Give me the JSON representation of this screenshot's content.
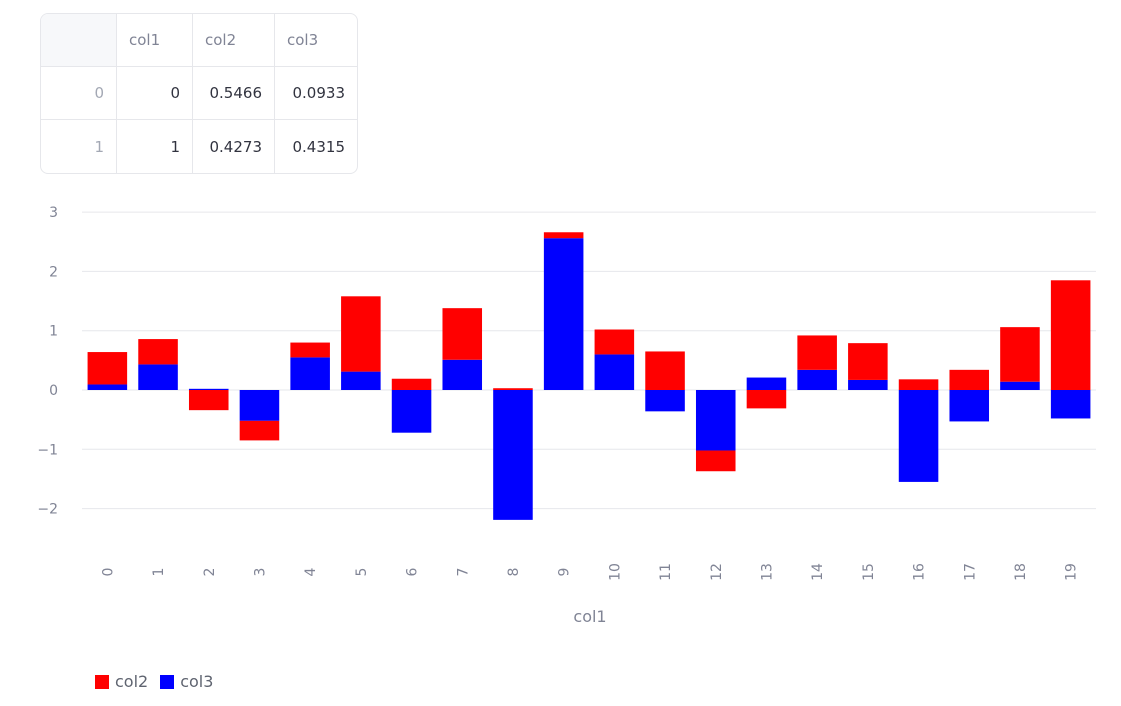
{
  "table": {
    "columns": [
      "",
      "col1",
      "col2",
      "col3"
    ],
    "rows": [
      {
        "index": "0",
        "col1": "0",
        "col2": "0.5466",
        "col3": "0.0933"
      },
      {
        "index": "1",
        "col1": "1",
        "col2": "0.4273",
        "col3": "0.4315"
      }
    ]
  },
  "chart_data": {
    "type": "bar",
    "stacked": true,
    "xlabel": "col1",
    "ylabel": "",
    "ylim": [
      -2.3,
      3.1
    ],
    "yticks": [
      -2,
      -1,
      0,
      1,
      2,
      3
    ],
    "ytick_labels": [
      "−2",
      "−1",
      "0",
      "1",
      "2",
      "3"
    ],
    "categories": [
      "0",
      "1",
      "2",
      "3",
      "4",
      "5",
      "6",
      "7",
      "8",
      "9",
      "10",
      "11",
      "12",
      "13",
      "14",
      "15",
      "16",
      "17",
      "18",
      "19"
    ],
    "series": [
      {
        "name": "col2",
        "color": "#ff0000",
        "values": [
          0.5466,
          0.4273,
          -0.34,
          -0.33,
          0.25,
          1.27,
          0.19,
          0.87,
          0.03,
          0.1,
          0.42,
          0.65,
          -0.35,
          -0.31,
          0.58,
          0.62,
          0.18,
          0.34,
          0.92,
          1.85
        ]
      },
      {
        "name": "col3",
        "color": "#0000ff",
        "values": [
          0.0933,
          0.4315,
          0.02,
          -0.52,
          0.55,
          0.31,
          -0.72,
          0.51,
          -2.19,
          2.56,
          0.6,
          -0.36,
          -1.02,
          0.21,
          0.34,
          0.17,
          -1.55,
          -0.53,
          0.14,
          -0.48
        ]
      }
    ],
    "legend_position": "bottom-left",
    "grid": true
  }
}
